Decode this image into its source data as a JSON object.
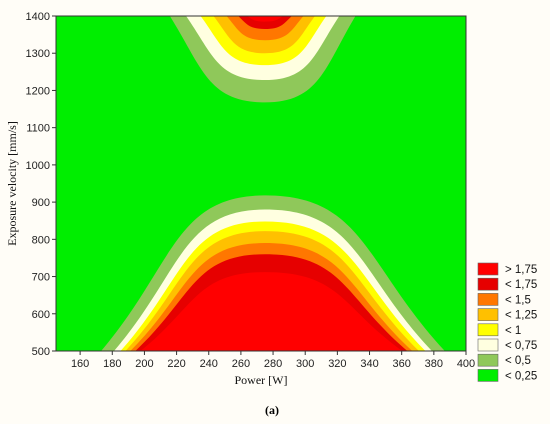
{
  "chart_data": {
    "type": "contour",
    "xlabel": "Power [W]",
    "ylabel": "Exposure velocity [mm/s]",
    "xlim": [
      145,
      400
    ],
    "ylim": [
      500,
      1400
    ],
    "xticks": [
      "160",
      "180",
      "200",
      "220",
      "240",
      "260",
      "280",
      "300",
      "320",
      "340",
      "360",
      "380",
      "400"
    ],
    "yticks": [
      "500",
      "600",
      "700",
      "800",
      "900",
      "1000",
      "1100",
      "1200",
      "1300",
      "1400"
    ],
    "caption": "(a)",
    "legend": [
      {
        "label": "> 1,75",
        "color": "#ff0000"
      },
      {
        "label": "< 1,75",
        "color": "#e60000"
      },
      {
        "label": "< 1,5",
        "color": "#ff7700"
      },
      {
        "label": "< 1,25",
        "color": "#ffc000"
      },
      {
        "label": "< 1",
        "color": "#ffff00"
      },
      {
        "label": "< 0,75",
        "color": "#ffffe0"
      },
      {
        "label": "< 0,5",
        "color": "#8fc85a"
      },
      {
        "label": "< 0,25",
        "color": "#00ee00"
      }
    ],
    "lower_peak": {
      "x_center": 275,
      "contours": [
        {
          "level": "< 0,5",
          "peak_y": 918,
          "x_left": 172,
          "x_right": 388
        },
        {
          "level": "< 0,75",
          "peak_y": 880,
          "x_left": 180,
          "x_right": 380
        },
        {
          "level": "< 1",
          "peak_y": 848,
          "x_left": 184,
          "x_right": 376
        },
        {
          "level": "< 1,25",
          "peak_y": 822,
          "x_left": 187,
          "x_right": 372
        },
        {
          "level": "< 1,5",
          "peak_y": 790,
          "x_left": 190,
          "x_right": 368
        },
        {
          "level": "< 1,75",
          "peak_y": 760,
          "x_left": 193,
          "x_right": 365
        },
        {
          "level": "> 1,75",
          "peak_y": 712,
          "x_left": 196,
          "x_right": 362
        }
      ]
    },
    "upper_peak": {
      "x_center": 275,
      "contours": [
        {
          "level": "< 0,5",
          "trough_y": 1168,
          "x_left": 215,
          "x_right": 332
        },
        {
          "level": "< 0,75",
          "trough_y": 1228,
          "x_left": 225,
          "x_right": 322
        },
        {
          "level": "< 1",
          "trough_y": 1268,
          "x_left": 234,
          "x_right": 314
        },
        {
          "level": "< 1,25",
          "trough_y": 1300,
          "x_left": 242,
          "x_right": 307
        },
        {
          "level": "< 1,5",
          "trough_y": 1335,
          "x_left": 250,
          "x_right": 300
        },
        {
          "level": "< 1,75",
          "trough_y": 1365,
          "x_left": 257,
          "x_right": 293
        },
        {
          "level": "> 1,75",
          "trough_y": 1385,
          "x_left": 262,
          "x_right": 288
        }
      ]
    }
  }
}
